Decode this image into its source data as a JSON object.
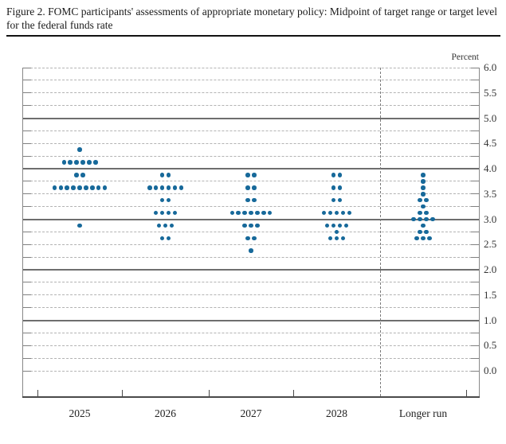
{
  "figure": {
    "title": "Figure 2. FOMC participants' assessments of appropriate monetary policy: Midpoint of target range or target level for the federal funds rate",
    "unit_label": "Percent"
  },
  "chart_data": {
    "type": "scatter",
    "subtype": "fomc-dot-plot",
    "title": "FOMC participants' assessments of appropriate monetary policy: Midpoint of target range or target level for the federal funds rate",
    "ylabel": "Percent",
    "xlabel": "",
    "ylim": [
      0.0,
      6.0
    ],
    "y_label_step": 0.5,
    "y_grid_step": 0.25,
    "solid_gridlines": [
      1.0,
      2.0,
      3.0,
      4.0,
      5.0
    ],
    "grid": "dashed",
    "legend": "none",
    "categories": [
      "2025",
      "2026",
      "2027",
      "2028",
      "Longer run"
    ],
    "series": [
      {
        "category": "2025",
        "distribution": [
          {
            "rate": 4.375,
            "count": 1
          },
          {
            "rate": 4.125,
            "count": 6
          },
          {
            "rate": 3.875,
            "count": 2
          },
          {
            "rate": 3.625,
            "count": 9
          },
          {
            "rate": 2.875,
            "count": 1
          }
        ]
      },
      {
        "category": "2026",
        "distribution": [
          {
            "rate": 3.875,
            "count": 2
          },
          {
            "rate": 3.625,
            "count": 6
          },
          {
            "rate": 3.375,
            "count": 2
          },
          {
            "rate": 3.125,
            "count": 4
          },
          {
            "rate": 2.875,
            "count": 3
          },
          {
            "rate": 2.625,
            "count": 2
          }
        ]
      },
      {
        "category": "2027",
        "distribution": [
          {
            "rate": 3.875,
            "count": 2
          },
          {
            "rate": 3.625,
            "count": 2
          },
          {
            "rate": 3.375,
            "count": 2
          },
          {
            "rate": 3.125,
            "count": 7
          },
          {
            "rate": 2.875,
            "count": 3
          },
          {
            "rate": 2.625,
            "count": 2
          },
          {
            "rate": 2.375,
            "count": 1
          }
        ]
      },
      {
        "category": "2028",
        "distribution": [
          {
            "rate": 3.875,
            "count": 2
          },
          {
            "rate": 3.625,
            "count": 2
          },
          {
            "rate": 3.375,
            "count": 2
          },
          {
            "rate": 3.125,
            "count": 5
          },
          {
            "rate": 2.875,
            "count": 4
          },
          {
            "rate": 2.75,
            "count": 1
          },
          {
            "rate": 2.625,
            "count": 3
          }
        ]
      },
      {
        "category": "Longer run",
        "distribution": [
          {
            "rate": 3.875,
            "count": 1
          },
          {
            "rate": 3.75,
            "count": 1
          },
          {
            "rate": 3.625,
            "count": 1
          },
          {
            "rate": 3.5,
            "count": 1
          },
          {
            "rate": 3.375,
            "count": 2
          },
          {
            "rate": 3.25,
            "count": 1
          },
          {
            "rate": 3.125,
            "count": 2
          },
          {
            "rate": 3.0,
            "count": 4
          },
          {
            "rate": 2.875,
            "count": 1
          },
          {
            "rate": 2.75,
            "count": 2
          },
          {
            "rate": 2.625,
            "count": 3
          }
        ]
      }
    ]
  },
  "colors": {
    "dot": "#17699a",
    "grid_dashed": "#b3b3b3",
    "grid_solid": "#6e6e6e",
    "axis": "#4a4a4a"
  }
}
